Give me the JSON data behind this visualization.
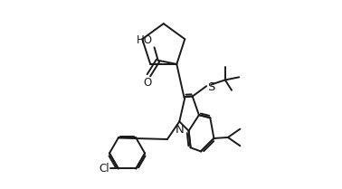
{
  "background": "#ffffff",
  "linecolor": "#1a1a1a",
  "linewidth": 1.4,
  "fontsize": 8.5,
  "fig_width": 3.78,
  "fig_height": 2.09,
  "xlim": [
    0.0,
    1.0
  ],
  "ylim": [
    0.0,
    1.0
  ]
}
